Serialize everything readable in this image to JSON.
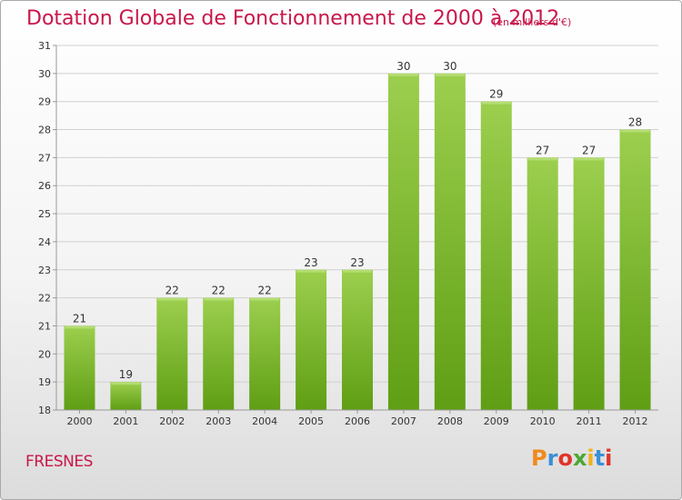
{
  "title": "Dotation Globale de Fonctionnement de 2000 à 2012",
  "subtitle": "(en milliers d'€)",
  "commune": "FRESNES",
  "logo": {
    "text": "Proxiti",
    "colors": [
      "#f08a1c",
      "#3b8fd6",
      "#e2332a",
      "#4aa832",
      "#f0b21c",
      "#3b8fd6",
      "#e2332a"
    ]
  },
  "colors": {
    "bar_top": "#9ccf4e",
    "bar_bottom": "#5f9e14",
    "accent": "#c8174a"
  },
  "chart_data": {
    "type": "bar",
    "categories": [
      "2000",
      "2001",
      "2002",
      "2003",
      "2004",
      "2005",
      "2006",
      "2007",
      "2008",
      "2009",
      "2010",
      "2011",
      "2012"
    ],
    "values": [
      21,
      19,
      22,
      22,
      22,
      23,
      23,
      30,
      30,
      29,
      27,
      27,
      28
    ],
    "ylim": [
      18,
      31
    ],
    "yticks": [
      18,
      19,
      20,
      21,
      22,
      23,
      24,
      25,
      26,
      27,
      28,
      29,
      30,
      31
    ],
    "grid": true
  }
}
